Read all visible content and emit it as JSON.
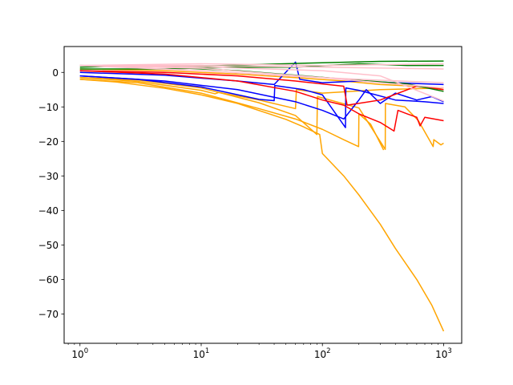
{
  "chart_data": {
    "type": "line",
    "title": "",
    "xlabel": "",
    "ylabel": "",
    "xscale": "log",
    "xlim": [
      0.74,
      1410.0
    ],
    "ylim": [
      -78.5,
      7.5
    ],
    "grid": false,
    "legend": "none",
    "x_ticks": [
      {
        "value": 1,
        "base": "10",
        "exp": "0"
      },
      {
        "value": 10,
        "base": "10",
        "exp": "1"
      },
      {
        "value": 100,
        "base": "10",
        "exp": "2"
      },
      {
        "value": 1000,
        "base": "10",
        "exp": "3"
      }
    ],
    "y_ticks": [
      {
        "value": 0,
        "label": "0"
      },
      {
        "value": -10,
        "label": "−10"
      },
      {
        "value": -20,
        "label": "−20"
      },
      {
        "value": -30,
        "label": "−30"
      },
      {
        "value": -40,
        "label": "−40"
      },
      {
        "value": -50,
        "label": "−50"
      },
      {
        "value": -60,
        "label": "−60"
      },
      {
        "value": -70,
        "label": "−70"
      }
    ],
    "colors": {
      "orange": "#ffa500",
      "blue": "#0000ff",
      "red": "#ff0000",
      "green": "#008000",
      "pink": "#ffc0cb"
    },
    "series": [
      {
        "color": "#ffa500",
        "x": [
          1,
          2,
          5,
          10,
          20,
          50,
          70,
          95,
          100,
          150,
          200,
          300,
          400,
          600,
          800,
          1000
        ],
        "y": [
          -2,
          -2.8,
          -4.6,
          -6.5,
          -9,
          -13.6,
          -15.8,
          -18,
          -23.5,
          -30,
          -35.5,
          -44,
          -51,
          -60,
          -67.5,
          -75
        ]
      },
      {
        "color": "#ffa500",
        "x": [
          1,
          3,
          10,
          30,
          60,
          100,
          150,
          199,
          200,
          250,
          320
        ],
        "y": [
          -2,
          -3,
          -6,
          -10.5,
          -13.5,
          -16.5,
          -19.5,
          -21.5,
          -12,
          -15,
          -22.5
        ]
      },
      {
        "color": "#ffa500",
        "x": [
          1,
          3,
          10,
          30,
          60,
          90,
          91,
          200,
          330,
          331,
          480,
          620,
          820,
          830,
          950,
          1000
        ],
        "y": [
          -1.5,
          -2.2,
          -4.5,
          -8.8,
          -12.5,
          -18,
          -7,
          -10.3,
          -22.3,
          -9,
          -10,
          -14,
          -21.5,
          -19.5,
          -21,
          -20.5
        ]
      },
      {
        "color": "#ffa500",
        "x": [
          1,
          3,
          10,
          13,
          14,
          30,
          60,
          61,
          100,
          300,
          1000
        ],
        "y": [
          -1.5,
          -2.6,
          -5.2,
          -6.2,
          -5.8,
          -8,
          -10.5,
          -5,
          -6,
          -5,
          -4.5
        ]
      },
      {
        "color": "#ffa500",
        "x": [
          1,
          5,
          20,
          60,
          150,
          300,
          600,
          1000
        ],
        "y": [
          1,
          0.5,
          -0.5,
          -1.5,
          -2.5,
          -3.5,
          -4,
          -4.5
        ]
      },
      {
        "color": "#0000ff",
        "x": [
          1,
          3,
          10,
          30,
          40,
          40.5,
          70,
          100,
          155,
          156,
          200,
          400,
          700,
          1000
        ],
        "y": [
          -1,
          -2,
          -4.2,
          -7.8,
          -8.2,
          -3.8,
          -5,
          -6.5,
          -16,
          -4.5,
          -5.2,
          -8,
          -8.5,
          -9
        ]
      },
      {
        "color": "#0000ff",
        "x": [
          1,
          5,
          20,
          60,
          100,
          150,
          200,
          230,
          300,
          400,
          600,
          800,
          1000
        ],
        "y": [
          -1,
          -2.5,
          -5,
          -8.5,
          -11,
          -13.5,
          -8,
          -5,
          -9,
          -6,
          -8,
          -7,
          -8.5
        ]
      },
      {
        "color": "#0000ff",
        "x": [
          1,
          5,
          20,
          40,
          60,
          65,
          100,
          200,
          400,
          1000
        ],
        "y": [
          0,
          -0.8,
          -2.5,
          -3.5,
          3,
          -2,
          -3,
          -2.5,
          -3,
          -3.5
        ]
      },
      {
        "color": "#ff0000",
        "x": [
          1,
          5,
          20,
          60,
          100,
          150,
          200,
          300,
          390,
          420,
          500,
          600,
          640,
          700,
          1000
        ],
        "y": [
          0.5,
          -0.5,
          -2.5,
          -5.5,
          -8,
          -9.5,
          -12,
          -14.5,
          -17,
          -11,
          -12,
          -13,
          -15.5,
          -13,
          -14
        ]
      },
      {
        "color": "#ff0000",
        "x": [
          1,
          5,
          20,
          60,
          150,
          160,
          300,
          600,
          1000
        ],
        "y": [
          0.5,
          0,
          -1,
          -2.5,
          -4,
          -9.5,
          -8,
          -4,
          -5
        ]
      },
      {
        "color": "#008000",
        "x": [
          1,
          5,
          20,
          60,
          200,
          500,
          1000
        ],
        "y": [
          2,
          1.5,
          0.5,
          -0.8,
          -2.3,
          -3.3,
          -5.5
        ]
      },
      {
        "color": "#008000",
        "x": [
          1,
          5,
          20,
          60,
          200,
          500,
          1000
        ],
        "y": [
          1,
          1,
          1.5,
          1.5,
          2.5,
          2,
          2
        ]
      },
      {
        "color": "#008000",
        "x": [
          1,
          3,
          10,
          30,
          100,
          300,
          1000
        ],
        "y": [
          1.5,
          2,
          1.8,
          2.3,
          2.8,
          3.2,
          3.3
        ]
      },
      {
        "color": "#ffc0cb",
        "x": [
          1,
          10,
          100,
          1000
        ],
        "y": [
          2,
          2,
          1.5,
          1
        ]
      },
      {
        "color": "#ffc0cb",
        "x": [
          1,
          10,
          100,
          300,
          1000
        ],
        "y": [
          2,
          1.6,
          0.5,
          -1,
          -8.3
        ]
      },
      {
        "color": "#ffc0cb",
        "x": [
          1,
          10,
          100,
          300,
          1000
        ],
        "y": [
          2,
          1.2,
          -1.5,
          -3,
          -4.5
        ]
      },
      {
        "color": "#ffc0cb",
        "x": [
          1,
          10,
          100,
          1000
        ],
        "y": [
          2,
          2.5,
          2,
          2.5
        ]
      },
      {
        "color": "#ffc0cb",
        "x": [
          1,
          10,
          50,
          200,
          1000
        ],
        "y": [
          2,
          0.5,
          -1,
          -2,
          -3
        ]
      }
    ]
  }
}
